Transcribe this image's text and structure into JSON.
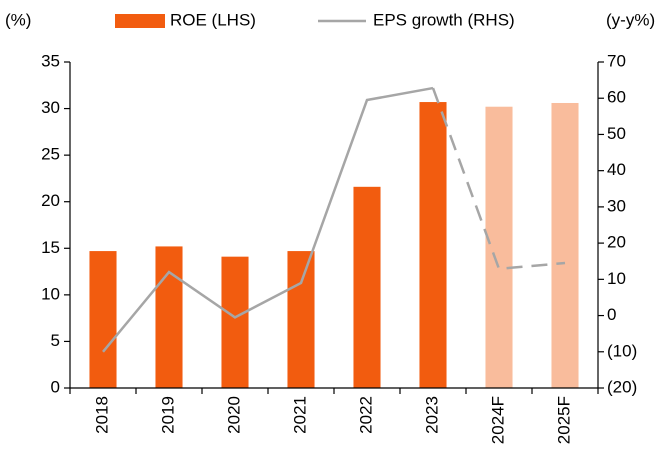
{
  "chart_data": {
    "type": "bar_line",
    "left_unit": "(%)",
    "right_unit": "(y-y%)",
    "categories": [
      "2018",
      "2019",
      "2020",
      "2021",
      "2022",
      "2023",
      "2024F",
      "2025F"
    ],
    "series": [
      {
        "name": "ROE (LHS)",
        "type": "bar",
        "color": "#f25c0f",
        "colors": [
          "#f25c0f",
          "#f25c0f",
          "#f25c0f",
          "#f25c0f",
          "#f25c0f",
          "#f25c0f",
          "#f9bc9c",
          "#f9bc9c"
        ],
        "values": [
          14.7,
          15.2,
          14.1,
          14.7,
          21.6,
          30.7,
          30.2,
          30.6
        ]
      },
      {
        "name": "EPS growth (RHS)",
        "type": "line",
        "axis": "y2",
        "color": "#a6a6a6",
        "dashed_from": 5,
        "values": [
          -10,
          12,
          -0.5,
          9,
          59.5,
          62.8,
          12.9,
          14.5
        ]
      }
    ],
    "ylim": [
      0,
      35
    ],
    "yticks": [
      0,
      5,
      10,
      15,
      20,
      25,
      30,
      35
    ],
    "y2lim": [
      -20,
      70
    ],
    "y2ticks": [
      {
        "value": -20,
        "label": "(20)"
      },
      {
        "value": -10,
        "label": "(10)"
      },
      0,
      10,
      20,
      30,
      40,
      50,
      60,
      70
    ]
  }
}
